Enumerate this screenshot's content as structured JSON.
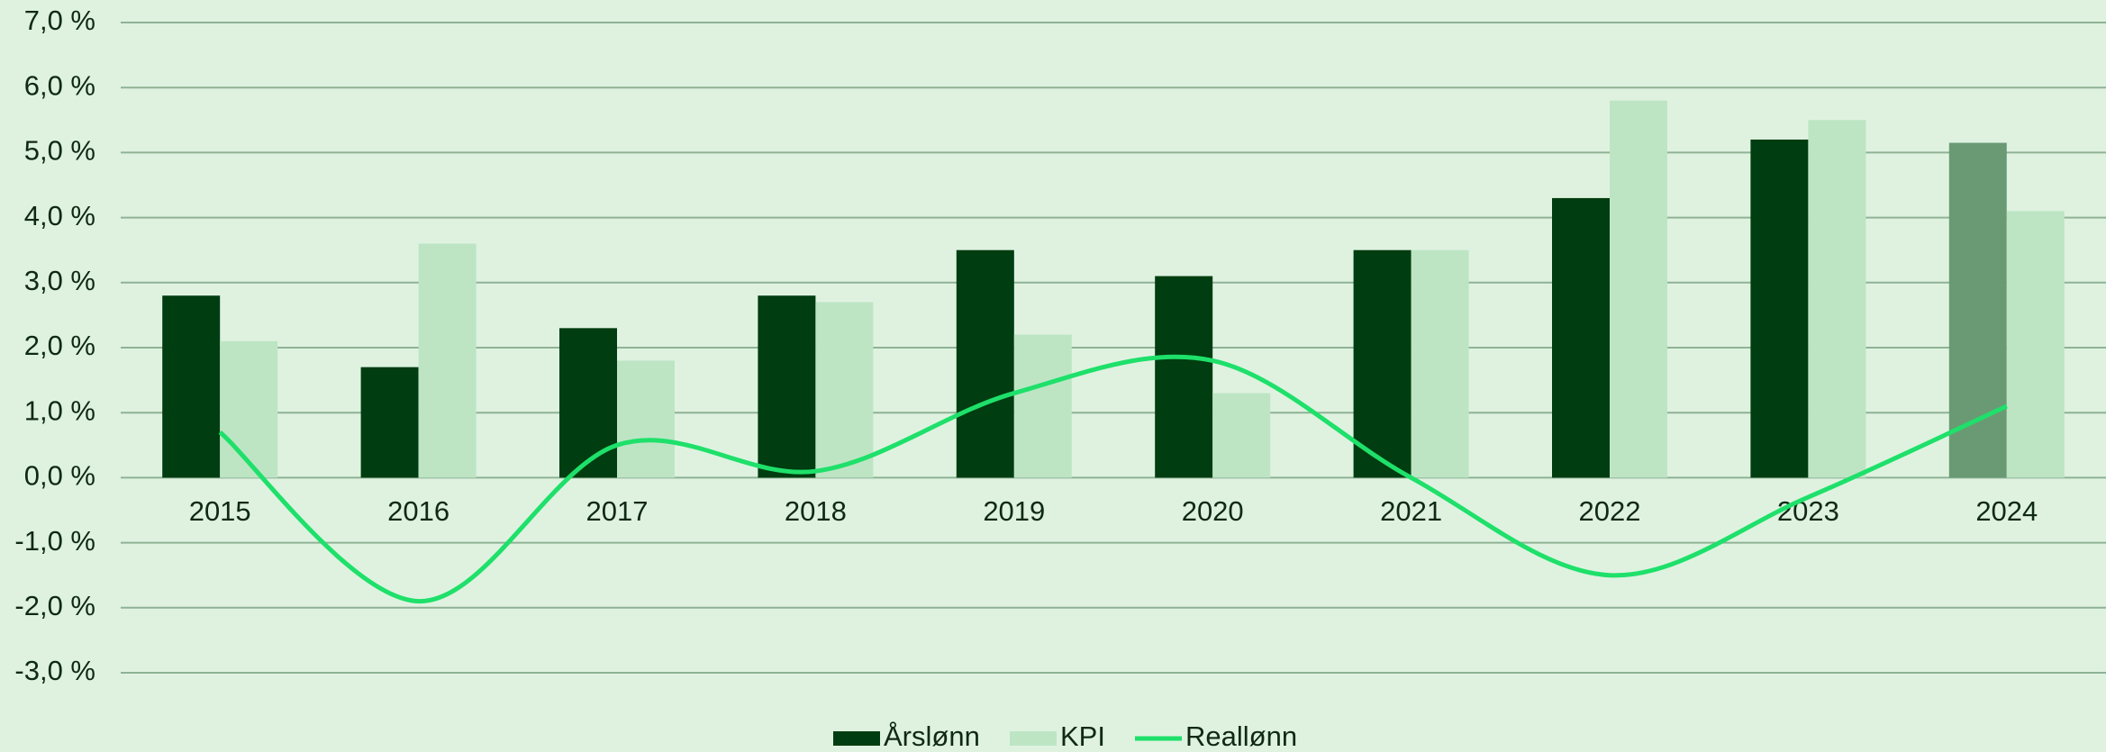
{
  "chart_data": {
    "type": "bar",
    "categories": [
      "2015",
      "2016",
      "2017",
      "2018",
      "2019",
      "2020",
      "2021",
      "2022",
      "2023",
      "2024"
    ],
    "series": [
      {
        "name": "Årslønn",
        "color": "#003d10",
        "values": [
          2.8,
          1.7,
          2.3,
          2.8,
          3.5,
          3.1,
          3.5,
          4.3,
          5.2,
          5.15
        ],
        "colors": [
          "#003d10",
          "#003d10",
          "#003d10",
          "#003d10",
          "#003d10",
          "#003d10",
          "#003d10",
          "#003d10",
          "#003d10",
          "#6a9a74"
        ]
      },
      {
        "name": "KPI",
        "color": "#bde5c4",
        "values": [
          2.1,
          3.6,
          1.8,
          2.7,
          2.2,
          1.3,
          3.5,
          5.8,
          5.5,
          4.1
        ]
      },
      {
        "name": "Reallønn",
        "color": "#1ee06a",
        "type": "line",
        "values": [
          0.7,
          -1.9,
          0.5,
          0.1,
          1.3,
          1.8,
          0.0,
          -1.5,
          -0.3,
          1.1
        ]
      }
    ],
    "ylim": [
      -3,
      7
    ],
    "yticks": [
      {
        "value": -3,
        "label": "-3,0 %"
      },
      {
        "value": -2,
        "label": "-2,0 %"
      },
      {
        "value": -1,
        "label": "-1,0 %"
      },
      {
        "value": 0,
        "label": "0,0 %"
      },
      {
        "value": 1,
        "label": "1,0 %"
      },
      {
        "value": 2,
        "label": "2,0 %"
      },
      {
        "value": 3,
        "label": "3,0 %"
      },
      {
        "value": 4,
        "label": "4,0 %"
      },
      {
        "value": 5,
        "label": "5,0 %"
      },
      {
        "value": 6,
        "label": "6,0 %"
      },
      {
        "value": 7,
        "label": "7,0 %"
      }
    ],
    "grid": true,
    "legend": "bottom"
  }
}
